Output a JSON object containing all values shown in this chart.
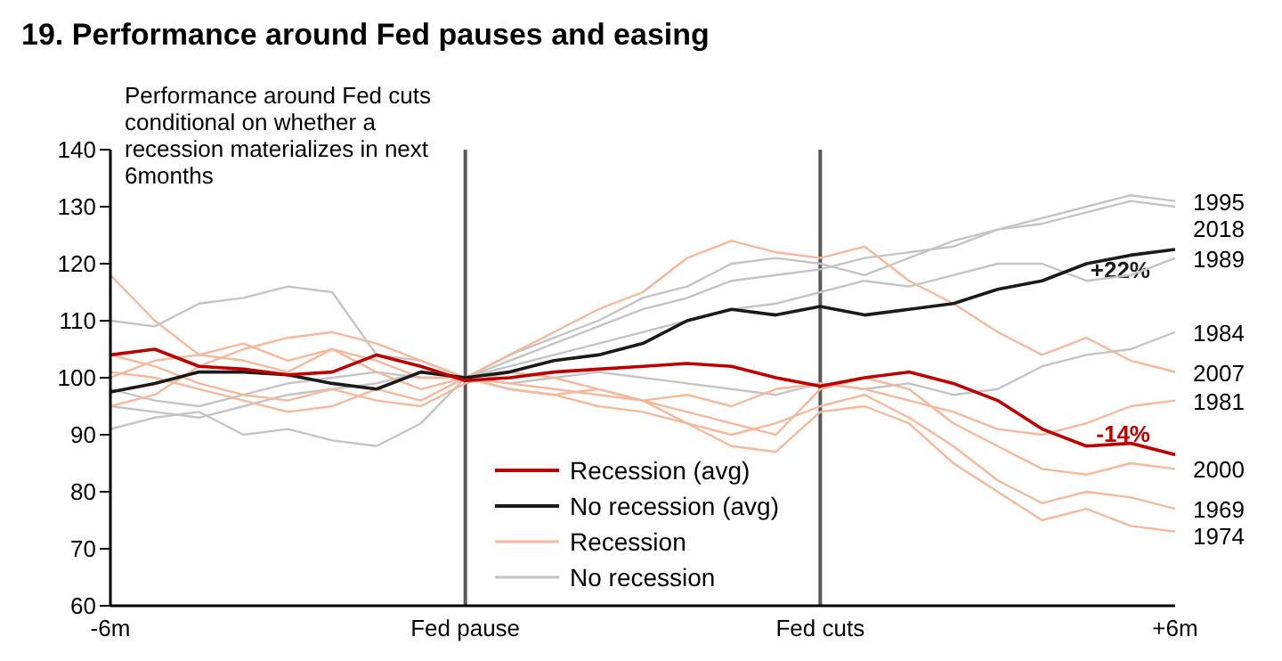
{
  "chart_data": {
    "type": "line",
    "title": "19. Performance around Fed pauses and easing",
    "categories": [
      "-6m",
      null,
      null,
      null,
      null,
      null,
      null,
      null,
      "Fed pause",
      null,
      null,
      null,
      null,
      null,
      null,
      null,
      "Fed cuts",
      null,
      null,
      null,
      null,
      null,
      null,
      null,
      "+6m"
    ],
    "ylim": [
      60,
      140
    ],
    "yticks": [
      60,
      70,
      80,
      90,
      100,
      110,
      120,
      130,
      140
    ],
    "grid": false,
    "legend": "bottom",
    "marker": "none",
    "line_style": "solid",
    "ref_lines": [
      {
        "axis": "x",
        "value": "Fed pause",
        "color": "#595959"
      },
      {
        "axis": "x",
        "value": "Fed cuts",
        "color": "#595959"
      }
    ],
    "series": [
      {
        "name": "Recession (avg)",
        "color": "#c00000",
        "values": [
          104,
          105,
          102,
          101.5,
          100.5,
          101,
          104,
          102,
          99.5,
          100,
          101,
          101.5,
          102,
          102.5,
          102,
          100,
          98.5,
          100,
          101,
          99,
          96,
          91,
          88,
          88.5,
          86.5
        ]
      },
      {
        "name": "No recession (avg)",
        "color": "#1a1a1a",
        "values": [
          97.5,
          99,
          101,
          101,
          100.5,
          99,
          98,
          101,
          100,
          101,
          103,
          104,
          106,
          110,
          112,
          111,
          112.5,
          111,
          112,
          113,
          115.5,
          117,
          120,
          121.5,
          122.5
        ]
      },
      {
        "name": "Recession",
        "color": "#f7b89a",
        "values": [
          118,
          110,
          104,
          106,
          103,
          105,
          101,
          98,
          100,
          98,
          97,
          98,
          96,
          97,
          95,
          98,
          99,
          98,
          96,
          94,
          91,
          90,
          92,
          95,
          96
        ]
      },
      {
        "color": "#f7b89a",
        "values": [
          101,
          100,
          98,
          96,
          94,
          95,
          98,
          96,
          100,
          99,
          98,
          97,
          96,
          94,
          92,
          90,
          98,
          100,
          98,
          92,
          88,
          84,
          83,
          85,
          84
        ]
      },
      {
        "color": "#f7b89a",
        "values": [
          100,
          103,
          104,
          103,
          101,
          105,
          103,
          100,
          100,
          98,
          97,
          95,
          94,
          92,
          90,
          92,
          95,
          97,
          93,
          88,
          82,
          78,
          80,
          79,
          77
        ]
      },
      {
        "color": "#f7b89a",
        "values": [
          104,
          102,
          99,
          97,
          96,
          98,
          96,
          95,
          99,
          101,
          100,
          98,
          96,
          92,
          88,
          87,
          94,
          95,
          92,
          85,
          80,
          75,
          77,
          74,
          73
        ]
      },
      {
        "color": "#f7b89a",
        "values": [
          95,
          97,
          102,
          105,
          107,
          108,
          106,
          103,
          100,
          104,
          108,
          112,
          115,
          121,
          124,
          122,
          121,
          123,
          117,
          113,
          108,
          104,
          107,
          103,
          101
        ]
      },
      {
        "name": "No recession",
        "color": "#c4c4c4",
        "values": [
          98,
          96,
          95,
          97,
          99,
          100,
          101,
          100,
          100,
          103,
          106,
          109,
          112,
          114,
          117,
          118,
          119,
          121,
          122,
          123,
          126,
          128,
          130,
          132,
          131
        ]
      },
      {
        "color": "#c4c4c4",
        "values": [
          110,
          109,
          113,
          114,
          116,
          115,
          104,
          103,
          100,
          104,
          107,
          110,
          114,
          116,
          120,
          121,
          120,
          118,
          121,
          124,
          126,
          127,
          129,
          131,
          130
        ]
      },
      {
        "color": "#c4c4c4",
        "values": [
          95,
          94,
          93,
          95,
          97,
          98,
          99,
          101,
          100,
          102,
          104,
          106,
          108,
          110,
          112,
          113,
          115,
          117,
          116,
          118,
          120,
          120,
          117,
          118,
          121
        ]
      },
      {
        "color": "#c4c4c4",
        "values": [
          91,
          93,
          94,
          90,
          91,
          89,
          88,
          92,
          100,
          99,
          100,
          101,
          100,
          99,
          98,
          97,
          99,
          98,
          99,
          97,
          98,
          102,
          104,
          105,
          108
        ]
      }
    ],
    "annotations": [
      "Performance around Fed cuts conditional on whether a recession materializes in next 6months",
      {
        "text": "+22%",
        "x": "+6m",
        "y": 122.5
      },
      {
        "text": "-14%",
        "x": "+6m",
        "y": 86.5
      },
      {
        "text": "1995",
        "x": "+6m",
        "y": 131
      },
      {
        "text": "2018",
        "x": "+6m",
        "y": 130
      },
      {
        "text": "1989",
        "x": "+6m",
        "y": 121
      },
      {
        "text": "1984",
        "x": "+6m",
        "y": 108
      },
      {
        "text": "2007",
        "x": "+6m",
        "y": 101
      },
      {
        "text": "1981",
        "x": "+6m",
        "y": 96
      },
      {
        "text": "2000",
        "x": "+6m",
        "y": 84
      },
      {
        "text": "1969",
        "x": "+6m",
        "y": 77
      },
      {
        "text": "1974",
        "x": "+6m",
        "y": 73
      }
    ]
  }
}
